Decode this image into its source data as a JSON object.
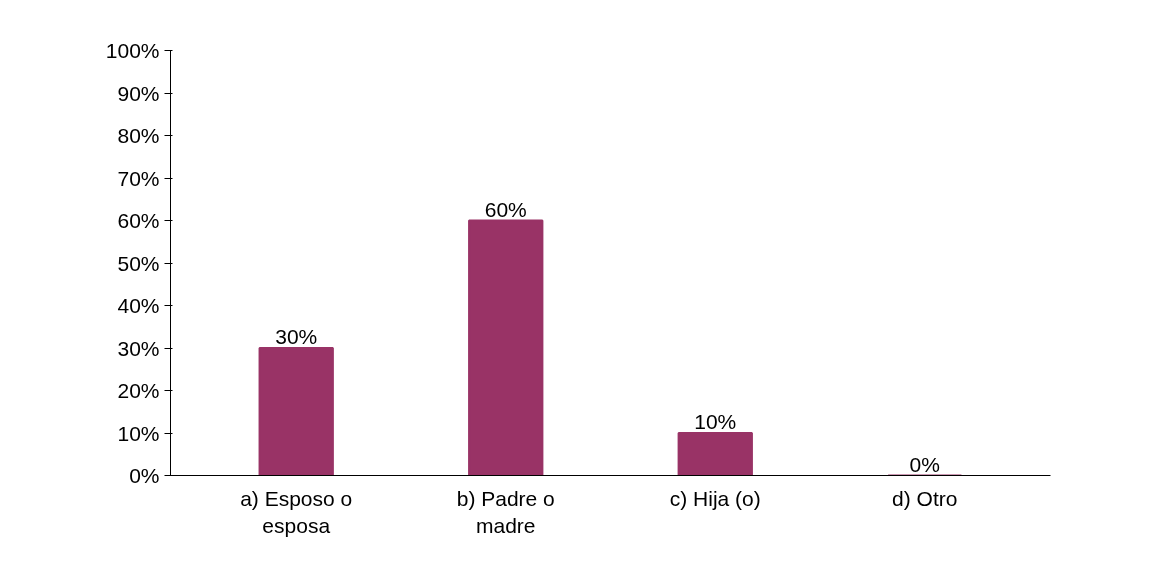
{
  "chart_data": {
    "type": "bar",
    "categories": [
      "a) Esposo o\nesposa",
      "b) Padre o\nmadre",
      "c) Hija (o)",
      "d) Otro"
    ],
    "values": [
      30,
      60,
      10,
      0
    ],
    "color": "#993366",
    "ylim": [
      0,
      100
    ],
    "yticks": [
      {
        "value": 0,
        "label": "0%"
      },
      {
        "value": 10,
        "label": "10%"
      },
      {
        "value": 20,
        "label": "20%"
      },
      {
        "value": 30,
        "label": "30%"
      },
      {
        "value": 40,
        "label": "40%"
      },
      {
        "value": 50,
        "label": "50%"
      },
      {
        "value": 60,
        "label": "60%"
      },
      {
        "value": 70,
        "label": "70%"
      },
      {
        "value": 80,
        "label": "80%"
      },
      {
        "value": 90,
        "label": "90%"
      },
      {
        "value": 100,
        "label": "100%"
      }
    ],
    "value_labels": [
      "30%",
      "60%",
      "10%",
      "0%"
    ],
    "grid": false
  }
}
